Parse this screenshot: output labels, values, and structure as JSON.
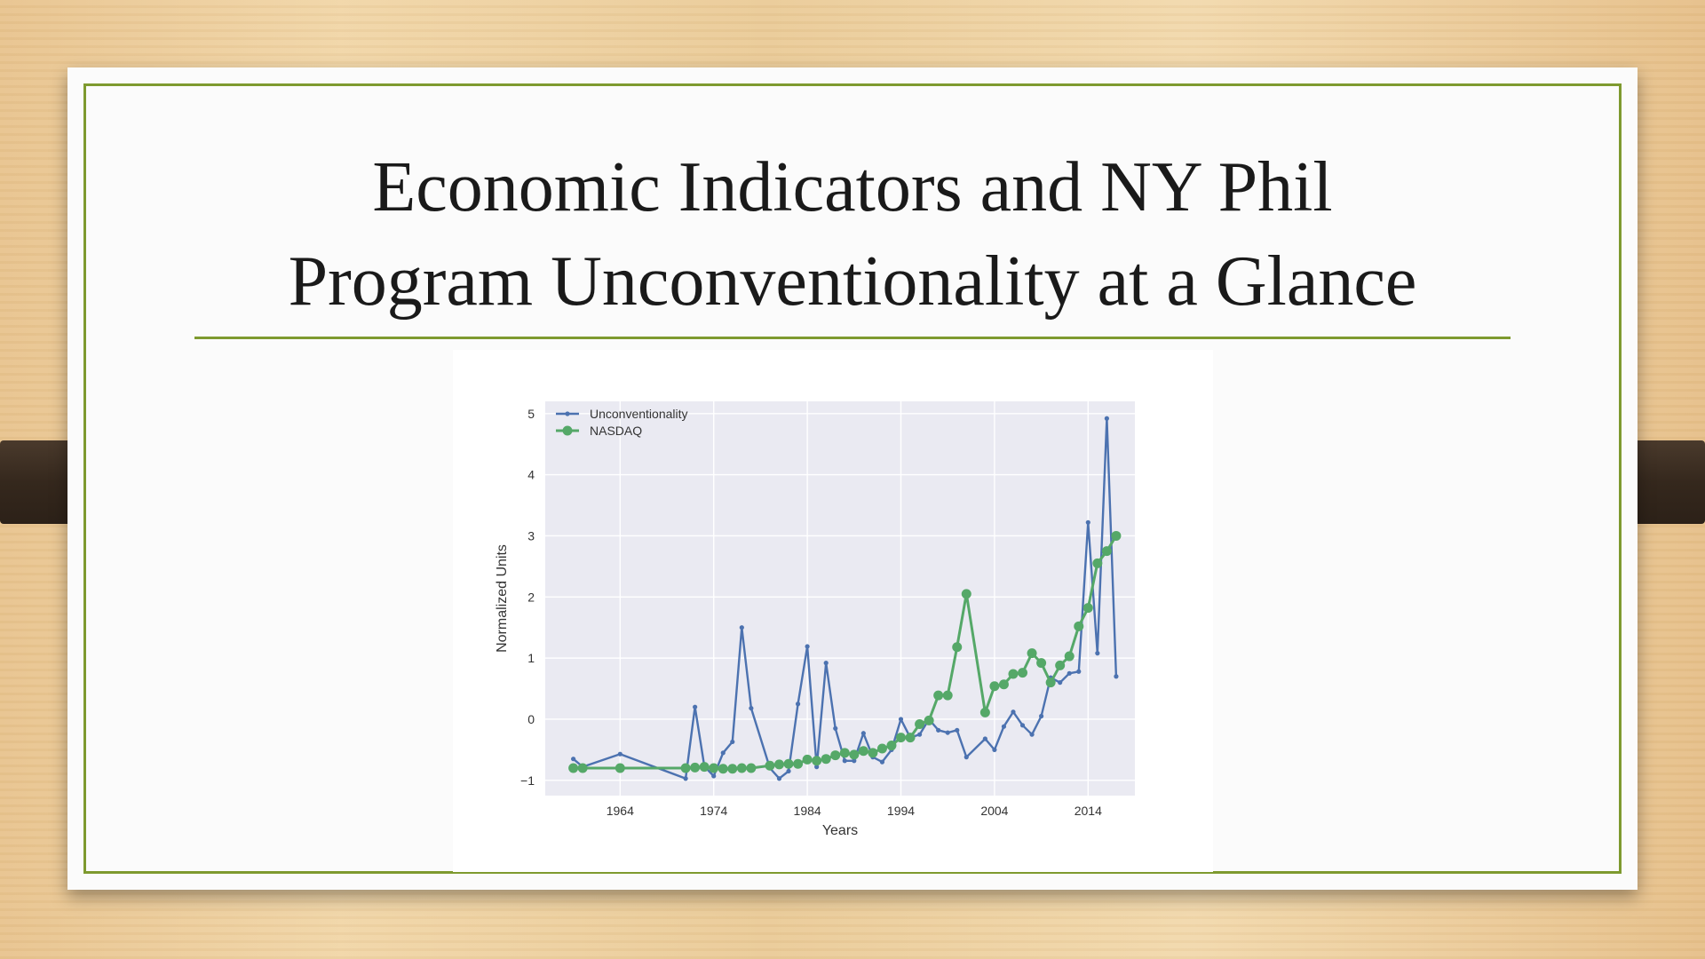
{
  "slide": {
    "title_line1": "Economic Indicators and NY Phil",
    "title_line2": "Program Unconventionality at a Glance"
  },
  "colors": {
    "frame": "#7e9a2f",
    "plot_bg": "#eaeaf2",
    "unconventionality": "#4c72b0",
    "nasdaq": "#55a868"
  },
  "chart_data": {
    "type": "line",
    "xlabel": "Years",
    "ylabel": "Normalized Units",
    "xlim": [
      1956,
      2019
    ],
    "ylim": [
      -1.25,
      5.2
    ],
    "xticks": [
      1964,
      1974,
      1984,
      1994,
      2004,
      2014
    ],
    "yticks": [
      -1,
      0,
      1,
      2,
      3,
      4,
      5
    ],
    "ytick_labels": [
      "−1",
      "0",
      "1",
      "2",
      "3",
      "4",
      "5"
    ],
    "grid": true,
    "legend_position": "top-left",
    "series": [
      {
        "name": "Unconventionality",
        "marker": "small-dot",
        "x": [
          1959,
          1960,
          1964,
          1971,
          1972,
          1973,
          1974,
          1975,
          1976,
          1977,
          1978,
          1980,
          1981,
          1982,
          1983,
          1984,
          1985,
          1986,
          1987,
          1988,
          1989,
          1990,
          1991,
          1992,
          1993,
          1994,
          1995,
          1996,
          1997,
          1998,
          1999,
          2000,
          2001,
          2003,
          2004,
          2005,
          2006,
          2007,
          2008,
          2009,
          2010,
          2011,
          2012,
          2013,
          2014,
          2015,
          2016,
          2017
        ],
        "y": [
          -0.65,
          -0.78,
          -0.57,
          -0.97,
          0.2,
          -0.77,
          -0.93,
          -0.55,
          -0.37,
          1.5,
          0.18,
          -0.8,
          -0.97,
          -0.85,
          0.25,
          1.19,
          -0.78,
          0.92,
          -0.15,
          -0.68,
          -0.68,
          -0.23,
          -0.62,
          -0.7,
          -0.5,
          0.0,
          -0.3,
          -0.25,
          0.0,
          -0.18,
          -0.22,
          -0.18,
          -0.62,
          -0.32,
          -0.5,
          -0.12,
          0.12,
          -0.1,
          -0.25,
          0.05,
          0.68,
          0.6,
          0.75,
          0.78,
          3.22,
          1.08,
          4.92,
          0.7
        ]
      },
      {
        "name": "NASDAQ",
        "marker": "large-dot",
        "x": [
          1959,
          1960,
          1964,
          1971,
          1972,
          1973,
          1974,
          1975,
          1976,
          1977,
          1978,
          1980,
          1981,
          1982,
          1983,
          1984,
          1985,
          1986,
          1987,
          1988,
          1989,
          1990,
          1991,
          1992,
          1993,
          1994,
          1995,
          1996,
          1997,
          1998,
          1999,
          2000,
          2001,
          2003,
          2004,
          2005,
          2006,
          2007,
          2008,
          2009,
          2010,
          2011,
          2012,
          2013,
          2014,
          2015,
          2016,
          2017
        ],
        "y": [
          -0.8,
          -0.8,
          -0.8,
          -0.8,
          -0.79,
          -0.78,
          -0.8,
          -0.81,
          -0.81,
          -0.8,
          -0.8,
          -0.76,
          -0.74,
          -0.73,
          -0.73,
          -0.66,
          -0.68,
          -0.65,
          -0.59,
          -0.55,
          -0.58,
          -0.52,
          -0.55,
          -0.48,
          -0.43,
          -0.3,
          -0.3,
          -0.08,
          -0.02,
          0.39,
          0.39,
          1.18,
          2.05,
          0.11,
          0.54,
          0.57,
          0.74,
          0.76,
          1.08,
          0.92,
          0.6,
          0.88,
          1.03,
          1.52,
          1.82,
          2.55,
          2.75,
          3.0
        ]
      }
    ]
  }
}
